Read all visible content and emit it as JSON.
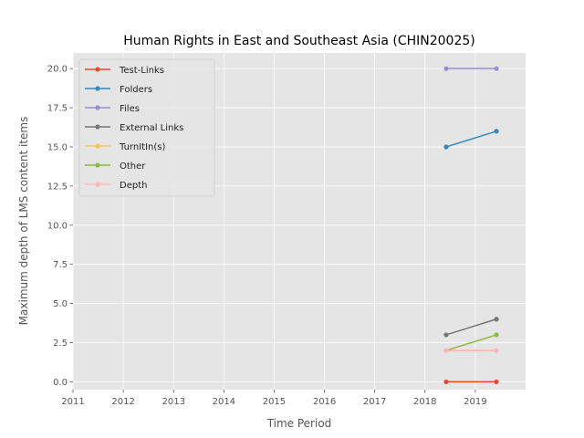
{
  "chart_data": {
    "type": "line",
    "title": "Human Rights in East and Southeast Asia (CHIN20025)",
    "xlabel": "Time Period",
    "ylabel": "Maximum depth of LMS content items",
    "xlim": [
      2011,
      2020
    ],
    "ylim": [
      -0.5,
      21
    ],
    "x_ticks": [
      "2011",
      "2012",
      "2013",
      "2014",
      "2015",
      "2016",
      "2017",
      "2018",
      "2019"
    ],
    "y_ticks": [
      "0.0",
      "2.5",
      "5.0",
      "7.5",
      "10.0",
      "12.5",
      "15.0",
      "17.5",
      "20.0"
    ],
    "x": [
      2018.42,
      2019.42
    ],
    "grid": true,
    "legend_position": "upper-left",
    "series": [
      {
        "name": "Test-Links",
        "values": [
          0,
          0
        ],
        "color": "#E24A33"
      },
      {
        "name": "Folders",
        "values": [
          15,
          16
        ],
        "color": "#348ABD"
      },
      {
        "name": "Files",
        "values": [
          20,
          20
        ],
        "color": "#988ED5"
      },
      {
        "name": "External Links",
        "values": [
          3,
          4
        ],
        "color": "#777777"
      },
      {
        "name": "TurnItIn(s)",
        "values": [
          2,
          2
        ],
        "color": "#FBC15E"
      },
      {
        "name": "Other",
        "values": [
          2,
          3
        ],
        "color": "#8EBA42"
      },
      {
        "name": "Depth",
        "values": [
          2,
          2
        ],
        "color": "#FFB5B8"
      }
    ]
  }
}
